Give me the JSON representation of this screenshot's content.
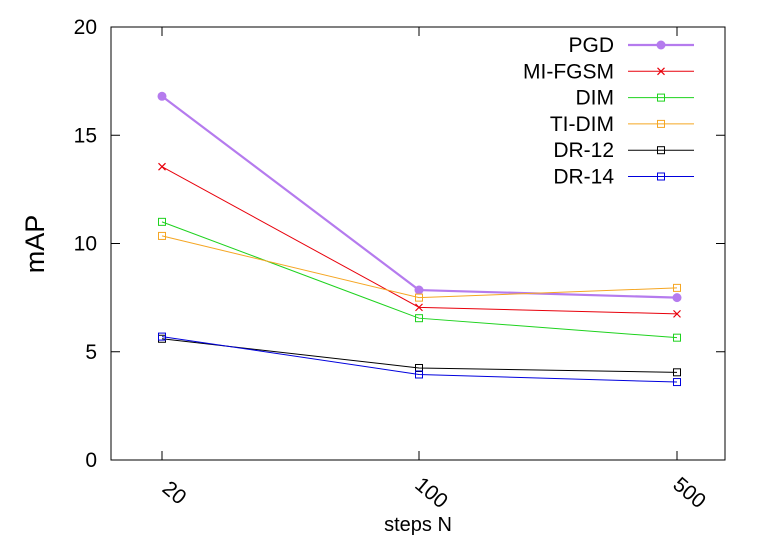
{
  "chart_data": {
    "type": "line",
    "x": [
      "20",
      "100",
      "500"
    ],
    "xlabel": "steps N",
    "ylabel": "mAP",
    "ylim": [
      0,
      20
    ],
    "yticks": [
      "0",
      "5",
      "10",
      "15",
      "20"
    ],
    "grid": false,
    "legend_position": "top-right",
    "series": [
      {
        "name": "PGD",
        "values": [
          16.8,
          7.85,
          7.5
        ],
        "color": "#b57bee",
        "marker": "filled-circle",
        "emphasis": true
      },
      {
        "name": "MI-FGSM",
        "values": [
          13.55,
          7.05,
          6.75
        ],
        "color": "#e8000b",
        "marker": "cross"
      },
      {
        "name": "DIM",
        "values": [
          11.0,
          6.55,
          5.65
        ],
        "color": "#1ed21e",
        "marker": "open-square"
      },
      {
        "name": "TI-DIM",
        "values": [
          10.35,
          7.5,
          7.95
        ],
        "color": "#f5a623",
        "marker": "open-square"
      },
      {
        "name": "DR-12",
        "values": [
          5.6,
          4.25,
          4.05
        ],
        "color": "#000000",
        "marker": "open-square"
      },
      {
        "name": "DR-14",
        "values": [
          5.7,
          3.95,
          3.6
        ],
        "color": "#0000dd",
        "marker": "open-square"
      }
    ]
  }
}
